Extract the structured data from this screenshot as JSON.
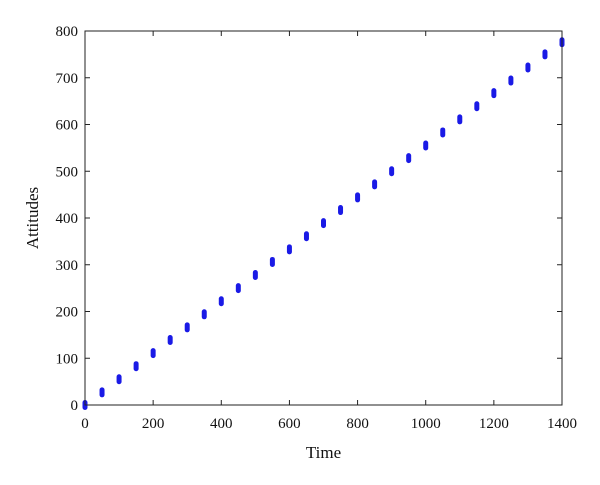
{
  "chart_data": {
    "type": "scatter",
    "title": "",
    "xlabel": "Time",
    "ylabel": "Attitudes",
    "xlim": [
      0,
      1400
    ],
    "ylim": [
      0,
      800
    ],
    "xticks": [
      0,
      200,
      400,
      600,
      800,
      1000,
      1200,
      1400
    ],
    "yticks": [
      0,
      100,
      200,
      300,
      400,
      500,
      600,
      700,
      800
    ],
    "grid": false,
    "marker_color": "#1a1ae6",
    "series": [
      {
        "name": "",
        "x": [
          0,
          50,
          100,
          150,
          200,
          250,
          300,
          350,
          400,
          450,
          500,
          550,
          600,
          650,
          700,
          750,
          800,
          850,
          900,
          950,
          1000,
          1050,
          1100,
          1150,
          1200,
          1250,
          1300,
          1350,
          1400
        ],
        "y": [
          0,
          27,
          55,
          83,
          111,
          139,
          166,
          194,
          222,
          250,
          278,
          306,
          333,
          361,
          389,
          417,
          444,
          472,
          500,
          528,
          555,
          583,
          611,
          639,
          667,
          694,
          722,
          750,
          776
        ]
      }
    ]
  }
}
